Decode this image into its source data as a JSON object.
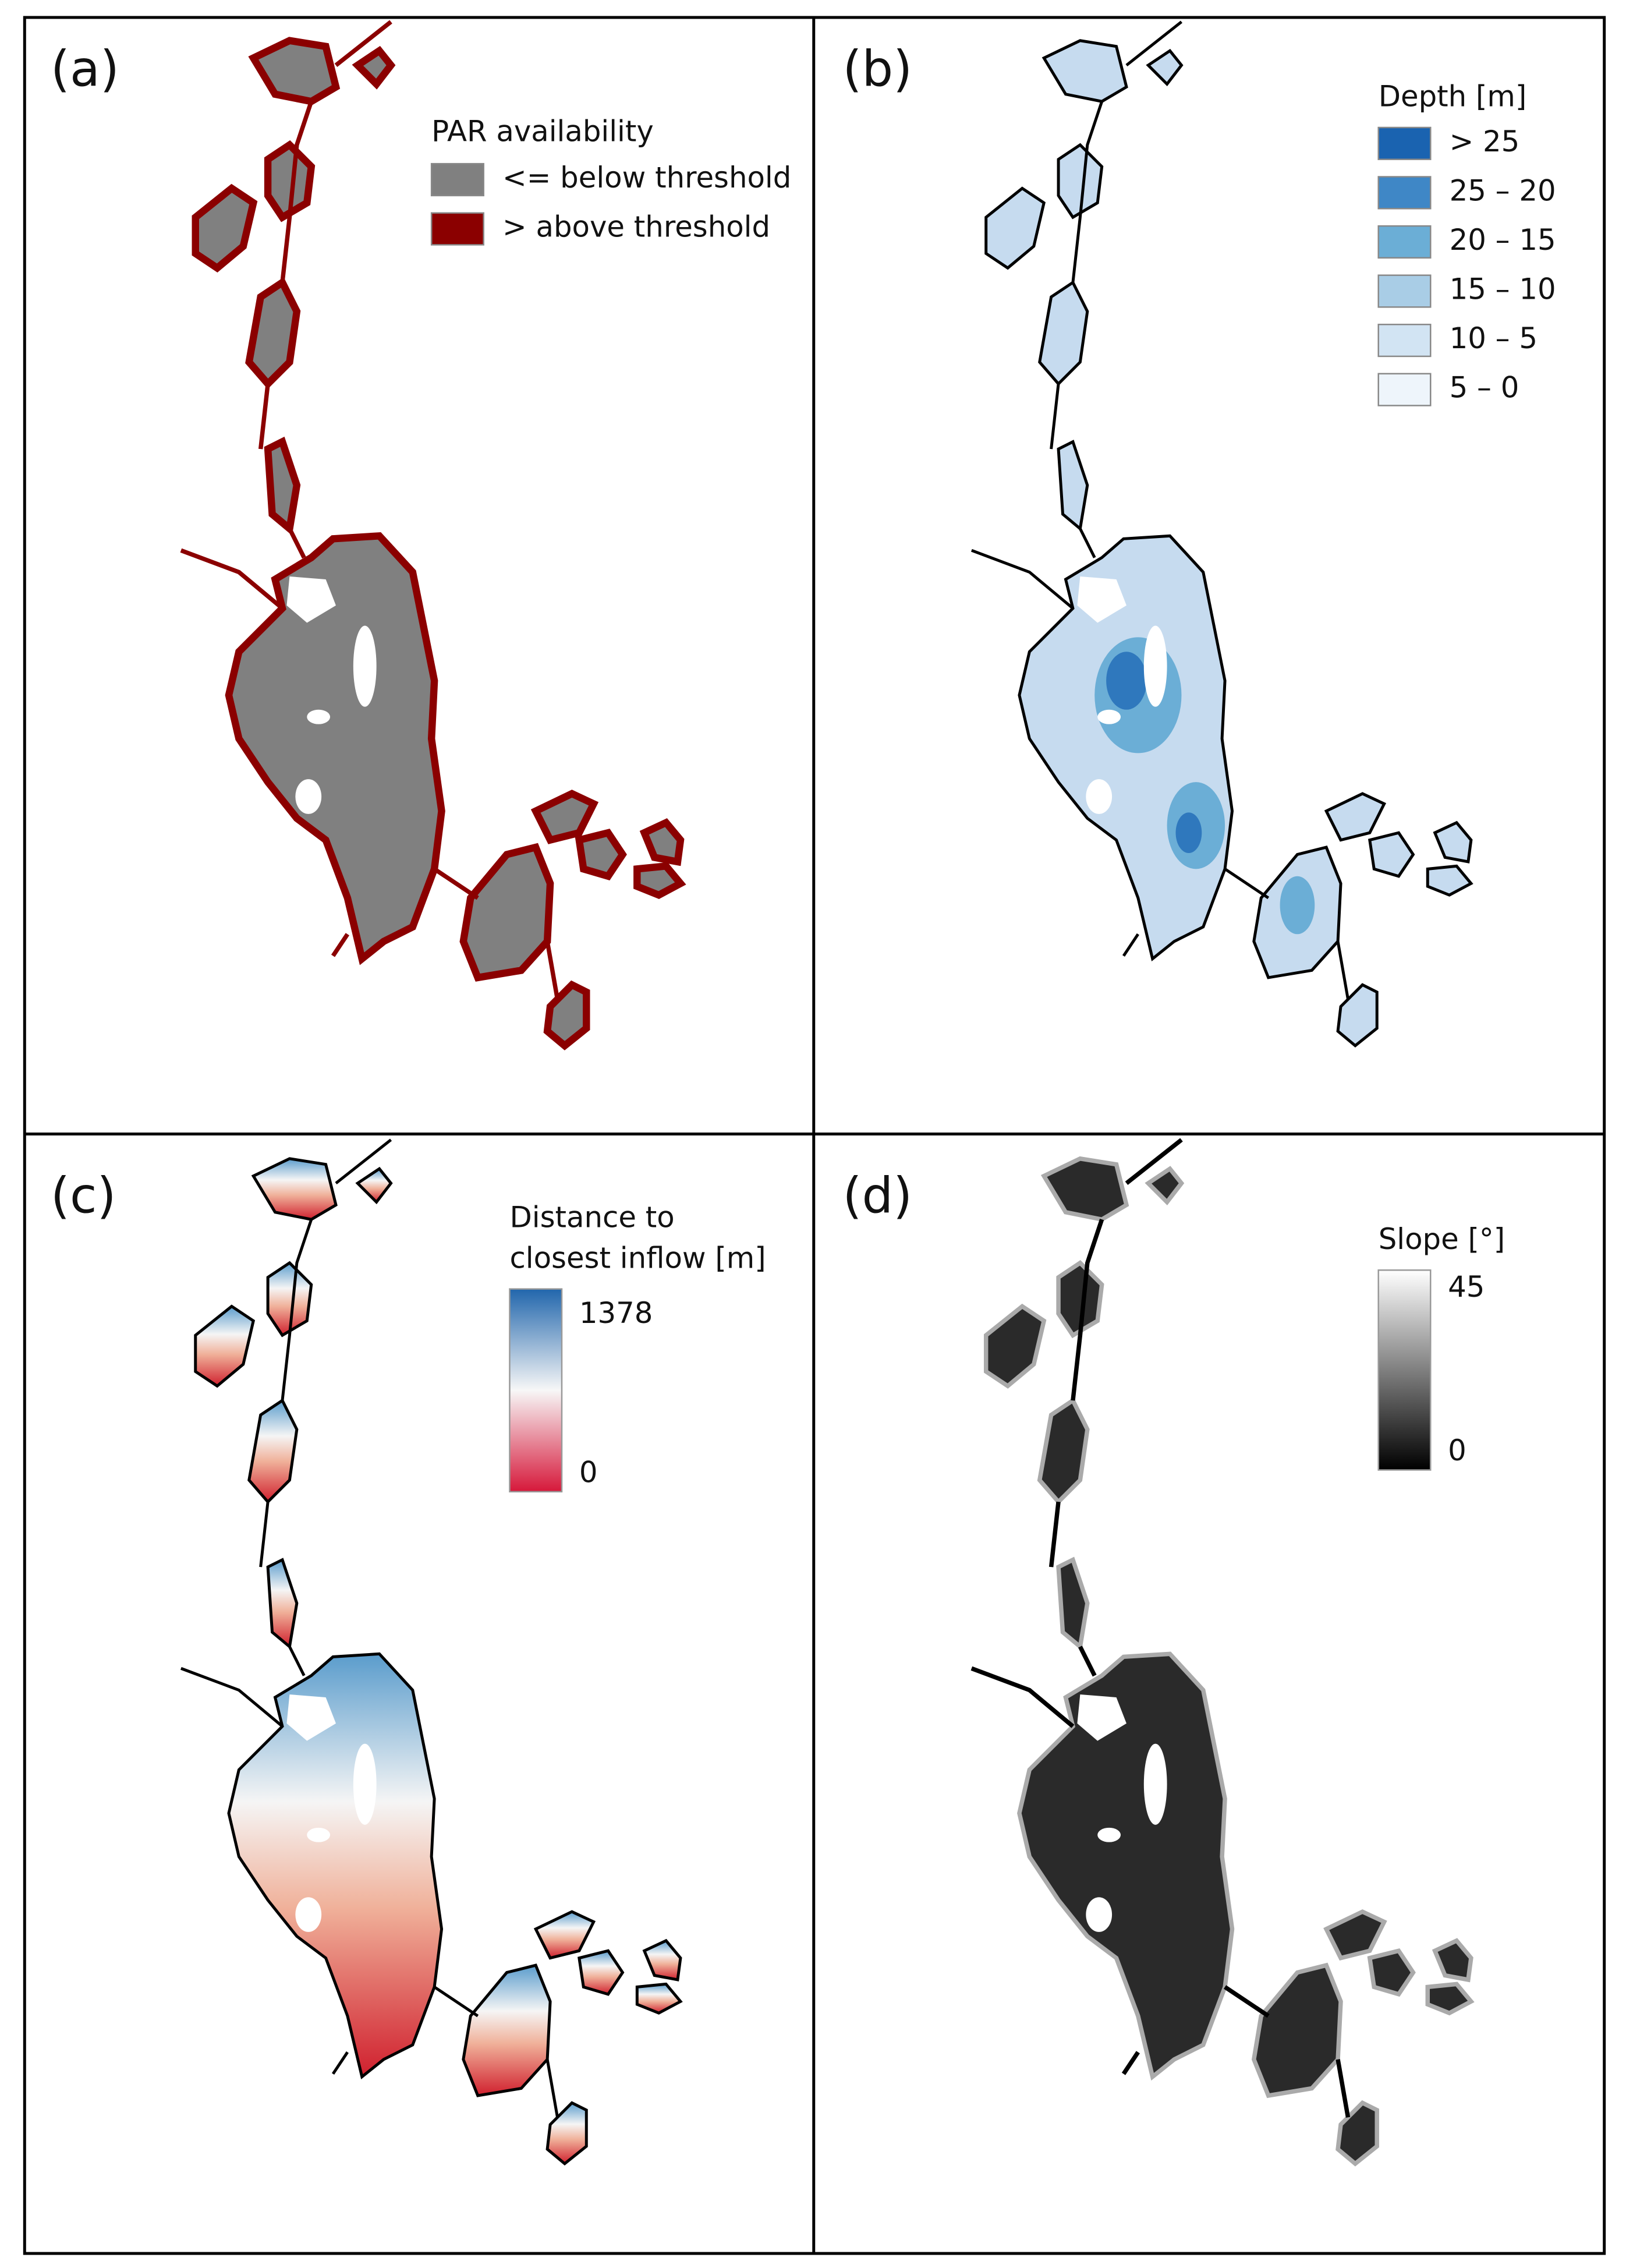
{
  "panels": [
    {
      "label": "(a)",
      "legend": {
        "title": "PAR availability",
        "items": [
          {
            "label": "<= below threshold",
            "color": "#808080"
          },
          {
            "label": "> above threshold",
            "color": "#8b0000"
          }
        ]
      }
    },
    {
      "label": "(b)",
      "legend": {
        "title": "Depth [m]",
        "items": [
          {
            "label": "> 25",
            "color": "#1a63b0"
          },
          {
            "label": "25 – 20",
            "color": "#3f87c6"
          },
          {
            "label": "20 – 15",
            "color": "#6baed6"
          },
          {
            "label": "15 – 10",
            "color": "#a9cde6"
          },
          {
            "label": "10 – 5",
            "color": "#d2e4f3"
          },
          {
            "label": "5 – 0",
            "color": "#eef5fb"
          }
        ]
      }
    },
    {
      "label": "(c)",
      "legend": {
        "title": [
          "Distance to",
          "closest inflow [m]"
        ],
        "max": 1378,
        "min": 0
      }
    },
    {
      "label": "(d)",
      "legend": {
        "title": "Slope [°]",
        "max": 45,
        "min": 0
      }
    }
  ]
}
